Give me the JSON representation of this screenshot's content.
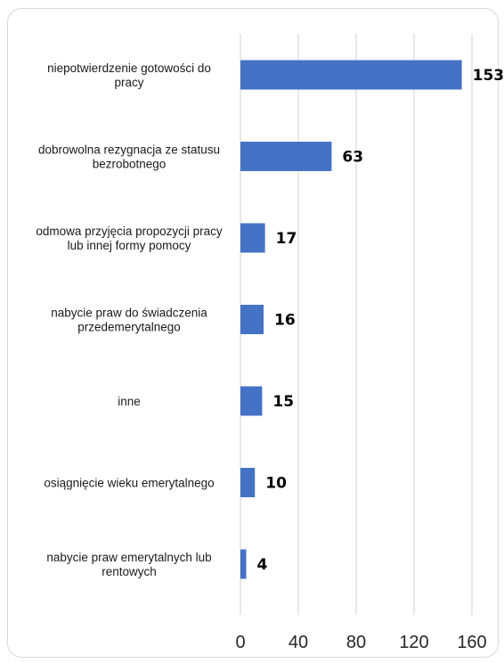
{
  "chart_data": {
    "type": "bar",
    "orientation": "horizontal",
    "categories": [
      [
        "niepotwierdzenie gotowości do",
        "pracy"
      ],
      [
        "dobrowolna rezygnacja ze statusu",
        "bezrobotnego"
      ],
      [
        "odmowa przyjęcia propozycji pracy",
        "lub innej formy pomocy"
      ],
      [
        "nabycie praw do świadczenia",
        "przedemerytalnego"
      ],
      [
        "inne"
      ],
      [
        "osiągnięcie wieku emerytalnego"
      ],
      [
        "nabycie praw emerytalnych lub",
        "rentowych"
      ]
    ],
    "values": [
      153,
      63,
      17,
      16,
      15,
      10,
      4
    ],
    "xlim": [
      0,
      160
    ],
    "xticks": [
      "0",
      "40",
      "80",
      "120",
      "160"
    ],
    "grid": true,
    "colors": {
      "bar": "#4472c4",
      "grid": "#d9d9d9",
      "frame": "#d9d9d9"
    }
  }
}
